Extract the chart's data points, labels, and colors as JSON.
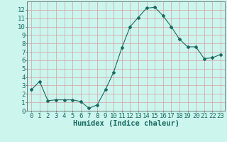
{
  "x": [
    0,
    1,
    2,
    3,
    4,
    5,
    6,
    7,
    8,
    9,
    10,
    11,
    12,
    13,
    14,
    15,
    16,
    17,
    18,
    19,
    20,
    21,
    22,
    23
  ],
  "y": [
    2.5,
    3.5,
    1.2,
    1.3,
    1.3,
    1.3,
    1.1,
    0.3,
    0.7,
    2.5,
    4.6,
    7.5,
    10.0,
    11.1,
    12.2,
    12.3,
    11.3,
    10.0,
    8.5,
    7.6,
    7.6,
    6.2,
    6.3,
    6.7
  ],
  "line_color": "#1a6b5e",
  "marker": "D",
  "marker_size": 2.0,
  "bg_color": "#ccf5ee",
  "grid_color": "#d4a0a0",
  "xlabel": "Humidex (Indice chaleur)",
  "xlim": [
    -0.5,
    23.5
  ],
  "ylim": [
    0,
    13
  ],
  "yticks": [
    0,
    1,
    2,
    3,
    4,
    5,
    6,
    7,
    8,
    9,
    10,
    11,
    12
  ],
  "xticks": [
    0,
    1,
    2,
    3,
    4,
    5,
    6,
    7,
    8,
    9,
    10,
    11,
    12,
    13,
    14,
    15,
    16,
    17,
    18,
    19,
    20,
    21,
    22,
    23
  ],
  "xtick_labels": [
    "0",
    "1",
    "2",
    "3",
    "4",
    "5",
    "6",
    "7",
    "8",
    "9",
    "10",
    "11",
    "12",
    "13",
    "14",
    "15",
    "16",
    "17",
    "18",
    "19",
    "20",
    "21",
    "22",
    "23"
  ],
  "font_size": 6.5,
  "label_font_size": 7.5,
  "tick_color": "#1a6b5e",
  "spine_color": "#666666",
  "linewidth": 0.8
}
